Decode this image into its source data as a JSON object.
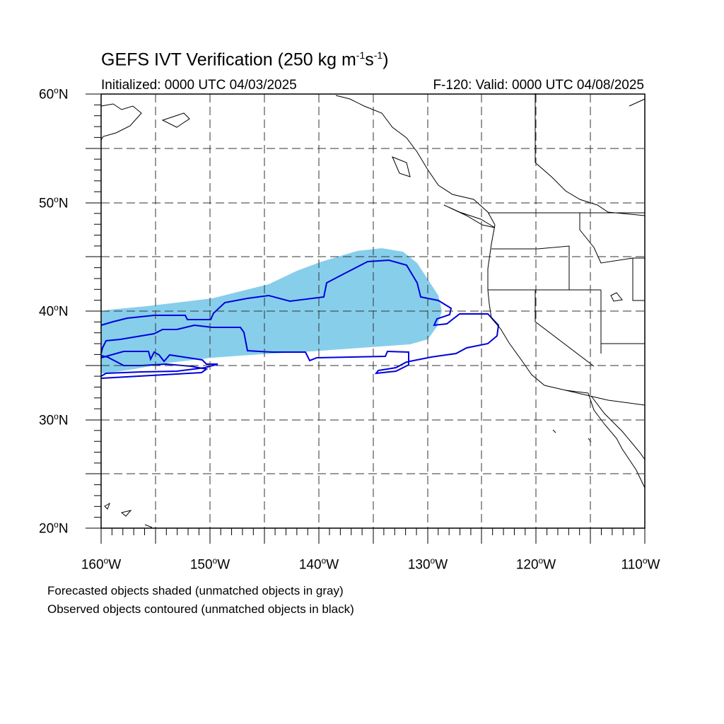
{
  "header": {
    "title_main": "GEFS IVT Verification (250 kg m",
    "title_exp1": "-1",
    "title_mid": "s",
    "title_exp2": "-1",
    "title_end": ")",
    "initialized": "Initialized: 0000 UTC 04/03/2025",
    "valid": "F-120: Valid: 0000 UTC 04/08/2025"
  },
  "axes": {
    "lat_labels": [
      {
        "deg": "60",
        "suffix": "N"
      },
      {
        "deg": "50",
        "suffix": "N"
      },
      {
        "deg": "40",
        "suffix": "N"
      },
      {
        "deg": "30",
        "suffix": "N"
      },
      {
        "deg": "20",
        "suffix": "N"
      }
    ],
    "lon_labels": [
      {
        "deg": "160",
        "suffix": "W"
      },
      {
        "deg": "150",
        "suffix": "W"
      },
      {
        "deg": "140",
        "suffix": "W"
      },
      {
        "deg": "130",
        "suffix": "W"
      },
      {
        "deg": "120",
        "suffix": "W"
      },
      {
        "deg": "110",
        "suffix": "W"
      }
    ],
    "lat_range": [
      20,
      60
    ],
    "lon_range": [
      -160,
      -110
    ],
    "gridline_spacing_deg": 5,
    "grid_style": "dashed"
  },
  "legend": {
    "forecast_note": "Forecasted objects shaded (unmatched objects in gray)",
    "observed_note": "Observed objects contoured (unmatched objects in black)"
  },
  "colors": {
    "forecast_fill": "#87CEEB",
    "observed_contour": "#0000DD",
    "coastline": "#000000",
    "grid": "#333333"
  }
}
